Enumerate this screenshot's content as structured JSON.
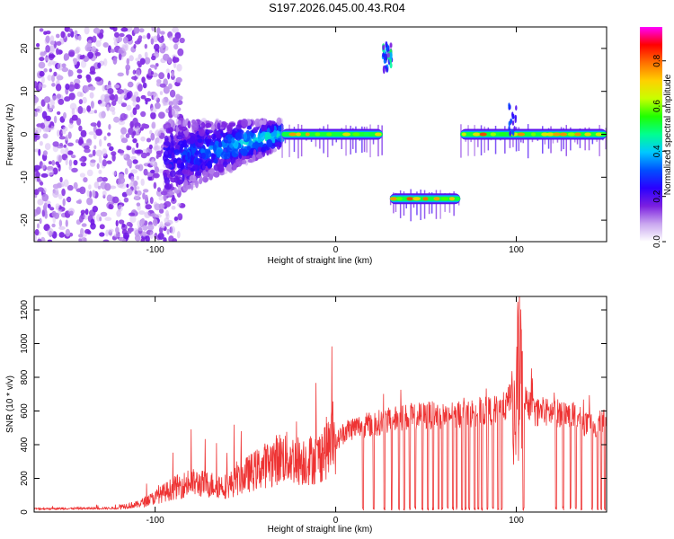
{
  "title": "S197.2026.045.00.43.R04",
  "chart_data": [
    {
      "type": "heatmap",
      "subtype": "spectrogram",
      "xlabel": "Height of straight line (km)",
      "ylabel": "Frequency (Hz)",
      "xlim": [
        -167,
        150
      ],
      "ylim": [
        -25,
        25
      ],
      "xticks": [
        {
          "value": -100,
          "label": "-100"
        },
        {
          "value": 0,
          "label": "0"
        },
        {
          "value": 100,
          "label": "100"
        }
      ],
      "yticks": [
        {
          "value": -20,
          "label": "-20"
        },
        {
          "value": -10,
          "label": "-10"
        },
        {
          "value": 0,
          "label": "0"
        },
        {
          "value": 10,
          "label": "10"
        },
        {
          "value": 20,
          "label": "20"
        }
      ],
      "colorbar": {
        "label": "Normalized spectral amplitude",
        "range": [
          0,
          0.95
        ],
        "ticks": [
          {
            "value": 0.0,
            "label": "0.0"
          },
          {
            "value": 0.2,
            "label": "0.2"
          },
          {
            "value": 0.4,
            "label": "0.4"
          },
          {
            "value": 0.6,
            "label": "0.6"
          },
          {
            "value": 0.8,
            "label": "0.8"
          }
        ],
        "colors": [
          "#ffffff",
          "#c9a6ef",
          "#7b1fe0",
          "#2a00ff",
          "#0050ff",
          "#00c8ff",
          "#00ff90",
          "#20ff00",
          "#c8ff00",
          "#ffd000",
          "#ff7000",
          "#ff0000",
          "#ff00ff"
        ]
      },
      "ridges": [
        {
          "name": "noise-region",
          "x": [
            -167,
            -95
          ],
          "freq_center": 0,
          "spread": 24,
          "amplitude": 0.15
        },
        {
          "name": "converging-band",
          "x": [
            -95,
            -30
          ],
          "freq_center_start": -6,
          "freq_center_end": 0,
          "spread": 8,
          "amplitude": 0.3
        },
        {
          "name": "main-line-1",
          "x": [
            -30,
            26
          ],
          "freq": 0,
          "amplitude": 0.75
        },
        {
          "name": "jump-high",
          "x": [
            26,
            31
          ],
          "freq": 18,
          "amplitude": 0.5
        },
        {
          "name": "shifted-line",
          "x": [
            30,
            69
          ],
          "freq": -15,
          "amplitude": 0.8
        },
        {
          "name": "main-line-2",
          "x": [
            69,
            150
          ],
          "freq": 0,
          "amplitude": 0.8
        },
        {
          "name": "spike",
          "x": [
            96,
            100
          ],
          "freq": 7,
          "amplitude": 0.4
        }
      ]
    },
    {
      "type": "line",
      "xlabel": "Height of straight line (km)",
      "ylabel": "SNR (10 * v/v)",
      "xlim": [
        -167,
        150
      ],
      "ylim": [
        0,
        1280
      ],
      "xticks": [
        {
          "value": -100,
          "label": "-100"
        },
        {
          "value": 0,
          "label": "0"
        },
        {
          "value": 100,
          "label": "100"
        }
      ],
      "yticks": [
        {
          "value": 0,
          "label": "0"
        },
        {
          "value": 200,
          "label": "200"
        },
        {
          "value": 400,
          "label": "400"
        },
        {
          "value": 600,
          "label": "600"
        },
        {
          "value": 800,
          "label": "800"
        },
        {
          "value": 1000,
          "label": "1000"
        },
        {
          "value": 1200,
          "label": "1200"
        }
      ],
      "series": [
        {
          "name": "SNR",
          "color": "#ee3333",
          "envelope": {
            "x": [
              -167,
              -120,
              -110,
              -100,
              -90,
              -80,
              -70,
              -60,
              -50,
              -40,
              -30,
              -20,
              -10,
              -5,
              0,
              5,
              10,
              20,
              30,
              40,
              50,
              60,
              70,
              80,
              90,
              95,
              100,
              102,
              105,
              110,
              120,
              130,
              140,
              150
            ],
            "y": [
              25,
              30,
              40,
              80,
              130,
              160,
              150,
              140,
              200,
              250,
              300,
              280,
              290,
              350,
              400,
              470,
              490,
              510,
              530,
              550,
              560,
              560,
              570,
              580,
              590,
              620,
              800,
              1050,
              650,
              580,
              575,
              570,
              500,
              520
            ]
          },
          "dropouts_x": [
            15,
            21,
            27,
            31,
            35,
            38,
            41,
            44,
            48,
            51,
            54,
            57,
            59,
            62,
            65,
            67,
            70,
            72,
            74,
            77,
            79,
            81,
            84,
            87,
            90,
            92,
            104,
            122,
            126,
            130,
            133,
            136,
            142,
            145,
            147,
            149
          ]
        }
      ]
    }
  ]
}
